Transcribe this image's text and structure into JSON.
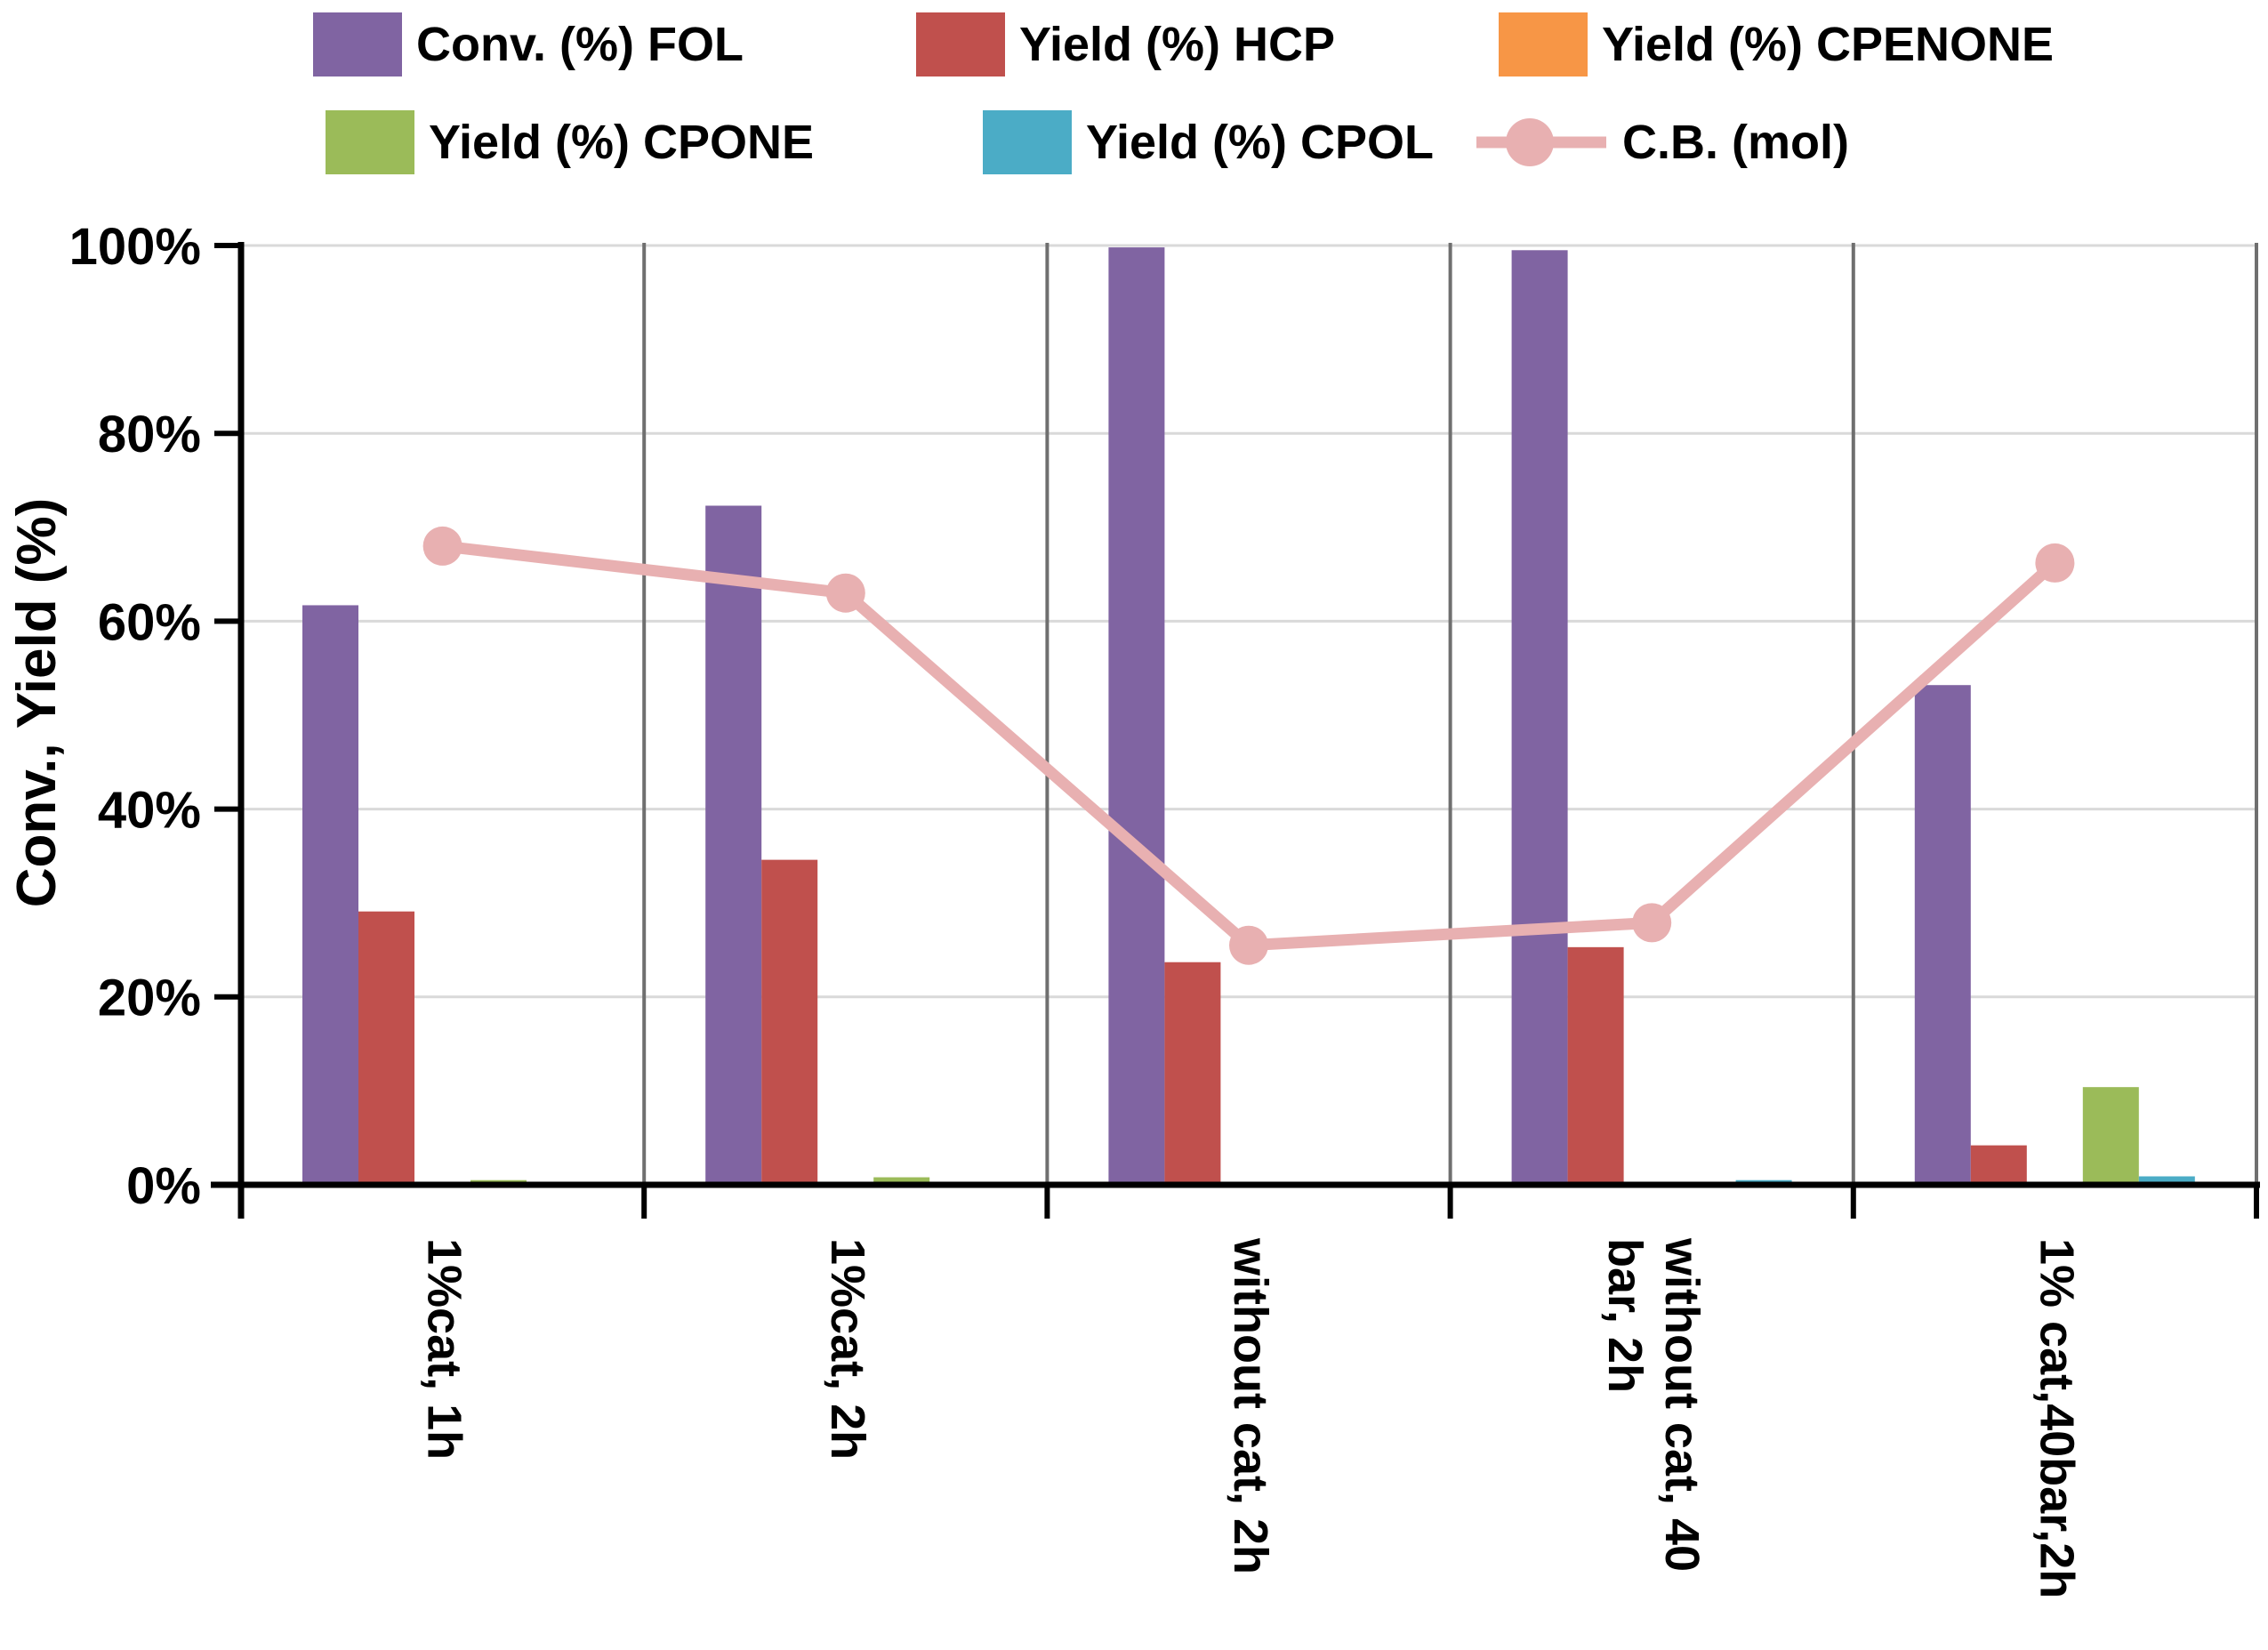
{
  "legend": {
    "items": [
      {
        "label": "Conv. (%) FOL",
        "color": "#8064A2",
        "glyph": "square"
      },
      {
        "label": "Yield (%) HCP",
        "color": "#C0504D",
        "glyph": "square"
      },
      {
        "label": "Yield (%) CPENONE",
        "color": "#F79646",
        "glyph": "square"
      },
      {
        "label": "Yield (%) CPONE",
        "color": "#9BBB59",
        "glyph": "square"
      },
      {
        "label": "Yield (%) CPOL",
        "color": "#4BACC6",
        "glyph": "square"
      },
      {
        "label": "C.B. (mol)",
        "color": "#E8B0B1",
        "glyph": "line-marker"
      }
    ],
    "position": "top",
    "rows": 2,
    "columns": 3
  },
  "chart_data": {
    "type": "bar",
    "subtype": "grouped-bars-with-line-overlay",
    "categories": [
      "1%cat, 1h",
      "1%cat, 2h",
      "without cat, 2h",
      "without cat, 40\nbar, 2h",
      "1% cat,40bar,2h"
    ],
    "series": [
      {
        "name": "Conv. (%) FOL",
        "type": "bar",
        "color": "#8064A2",
        "values": [
          61.7,
          72.3,
          99.8,
          99.5,
          53.2
        ]
      },
      {
        "name": "Yield (%) HCP",
        "type": "bar",
        "color": "#C0504D",
        "values": [
          29.1,
          34.6,
          23.7,
          25.3,
          4.2
        ]
      },
      {
        "name": "Yield (%) CPENONE",
        "type": "bar",
        "color": "#F79646",
        "values": [
          0,
          0,
          0,
          0,
          0
        ]
      },
      {
        "name": "Yield (%) CPONE",
        "type": "bar",
        "color": "#9BBB59",
        "values": [
          0.5,
          0.8,
          0,
          0.3,
          10.4
        ]
      },
      {
        "name": "Yield (%) CPOL",
        "type": "bar",
        "color": "#4BACC6",
        "values": [
          0,
          0,
          0,
          0.5,
          0.9
        ]
      },
      {
        "name": "C.B. (mol)",
        "type": "line",
        "color": "#E8B0B1",
        "values": [
          68.0,
          63.0,
          25.5,
          27.9,
          66.2
        ]
      }
    ],
    "title": "",
    "xlabel": "",
    "ylabel": "Conv., Yield (%)",
    "ylim": [
      0,
      100
    ],
    "ytick_step": 20,
    "y_tick_labels": [
      "0%",
      "20%",
      "40%",
      "60%",
      "80%",
      "100%"
    ],
    "grid": {
      "horizontal": true,
      "vertical_category_separators": true
    },
    "legend_position": "top"
  },
  "style_colors": {
    "horizontal_gridline": "#D9D9D9",
    "vertical_separator": "#6F6F6F",
    "axis": "#000000",
    "background": "#FFFFFF"
  }
}
